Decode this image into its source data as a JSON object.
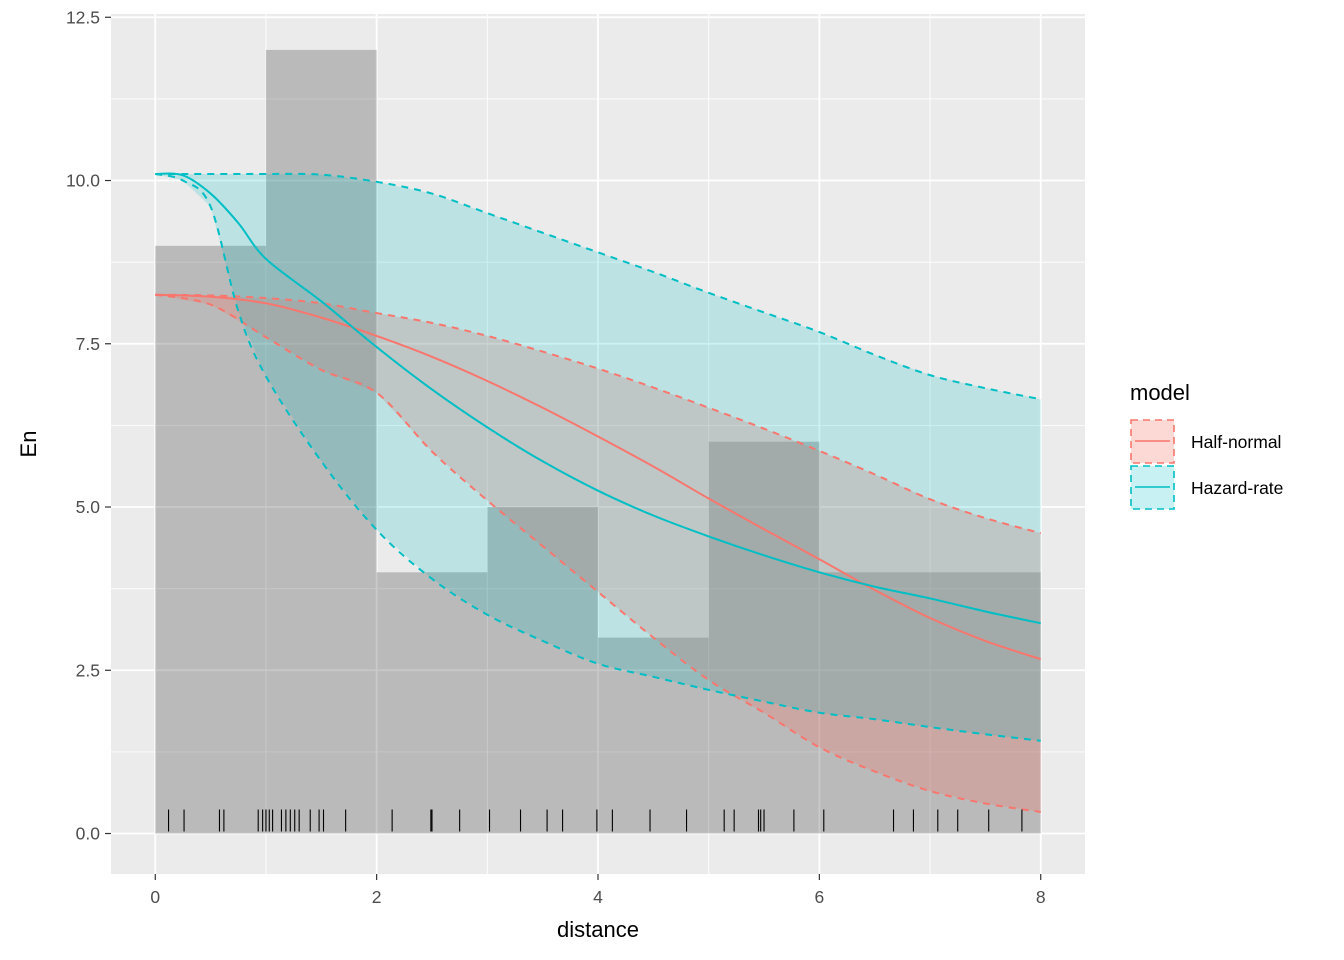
{
  "chart_data": {
    "type": "area",
    "xlabel": "distance",
    "ylabel": "En",
    "xlim": [
      -0.4,
      8.4
    ],
    "ylim": [
      -0.62,
      12.55
    ],
    "x_ticks": [
      0,
      2,
      4,
      6,
      8
    ],
    "x_tick_labels": [
      "0",
      "2",
      "4",
      "6",
      "8"
    ],
    "y_ticks": [
      0,
      2.5,
      5,
      7.5,
      10,
      12.5
    ],
    "y_tick_labels": [
      "0.0",
      "2.5",
      "5.0",
      "7.5",
      "10.0",
      "12.5"
    ],
    "grid": true,
    "histogram": {
      "bin_edges": [
        0,
        1,
        2,
        3,
        4,
        5,
        6,
        7,
        8
      ],
      "counts": [
        9,
        12,
        4,
        5,
        3,
        6,
        4,
        4
      ],
      "color": "#595959"
    },
    "rug": [
      0.12,
      0.26,
      0.58,
      0.62,
      0.93,
      0.97,
      1.0,
      1.03,
      1.06,
      1.14,
      1.18,
      1.22,
      1.26,
      1.3,
      1.4,
      1.48,
      1.52,
      1.72,
      2.14,
      2.49,
      2.5,
      2.75,
      3.02,
      3.3,
      3.54,
      3.68,
      3.99,
      4.13,
      4.47,
      4.8,
      5.14,
      5.23,
      5.45,
      5.47,
      5.5,
      5.77,
      6.04,
      6.67,
      6.85,
      7.07,
      7.25,
      7.53,
      7.83
    ],
    "series": [
      {
        "name": "Half-normal",
        "color": "#F8766D",
        "x": [
          0,
          0.5,
          1,
          1.5,
          2,
          2.5,
          3,
          3.5,
          4,
          4.5,
          5,
          5.5,
          6,
          6.5,
          7,
          7.5,
          8
        ],
        "y": [
          8.25,
          8.22,
          8.12,
          7.9,
          7.62,
          7.3,
          6.93,
          6.52,
          6.08,
          5.62,
          5.13,
          4.66,
          4.2,
          3.73,
          3.3,
          2.95,
          2.67
        ],
        "upper": [
          8.25,
          8.24,
          8.2,
          8.12,
          7.97,
          7.82,
          7.62,
          7.38,
          7.12,
          6.83,
          6.52,
          6.2,
          5.86,
          5.5,
          5.12,
          4.83,
          4.6
        ],
        "lower": [
          8.25,
          8.1,
          7.6,
          7.1,
          6.75,
          5.85,
          5.1,
          4.4,
          3.7,
          3.0,
          2.35,
          1.85,
          1.32,
          0.95,
          0.65,
          0.46,
          0.33
        ]
      },
      {
        "name": "Hazard-rate",
        "color": "#00BFC4",
        "x": [
          0,
          0.25,
          0.5,
          0.75,
          1,
          1.5,
          2,
          2.5,
          3,
          3.5,
          4,
          4.5,
          5,
          5.5,
          6,
          6.5,
          7,
          7.5,
          8
        ],
        "y": [
          10.1,
          10.08,
          9.8,
          9.35,
          8.8,
          8.15,
          7.45,
          6.8,
          6.22,
          5.7,
          5.25,
          4.87,
          4.55,
          4.26,
          4.0,
          3.78,
          3.6,
          3.4,
          3.22
        ],
        "upper": [
          10.1,
          10.1,
          10.1,
          10.1,
          10.1,
          10.09,
          9.98,
          9.8,
          9.5,
          9.2,
          8.9,
          8.6,
          8.28,
          7.98,
          7.68,
          7.33,
          7.02,
          6.82,
          6.65
        ],
        "lower": [
          10.1,
          10.0,
          9.6,
          8.0,
          7.0,
          5.7,
          4.65,
          3.9,
          3.35,
          2.95,
          2.6,
          2.4,
          2.2,
          2.02,
          1.85,
          1.75,
          1.63,
          1.52,
          1.42
        ]
      }
    ],
    "legend": {
      "title": "model",
      "position": "right",
      "items": [
        "Half-normal",
        "Hazard-rate"
      ]
    }
  }
}
